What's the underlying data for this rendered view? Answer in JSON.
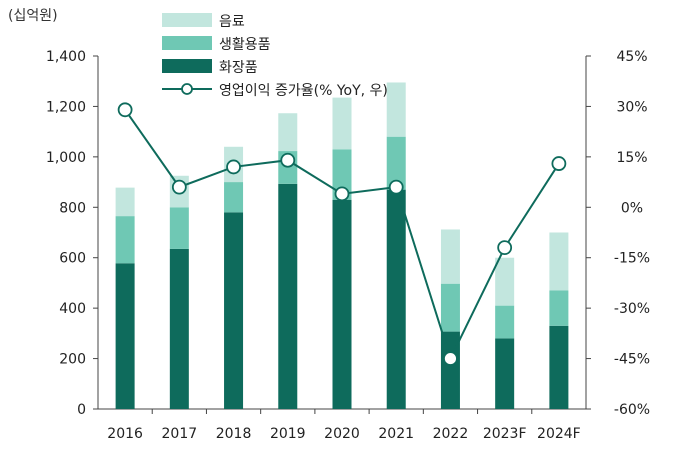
{
  "chart_data": {
    "type": "bar",
    "unit_label": "(십억원)",
    "categories": [
      "2016",
      "2017",
      "2018",
      "2019",
      "2020",
      "2021",
      "2022",
      "2023F",
      "2024F"
    ],
    "stacked": true,
    "series": [
      {
        "name": "화장품",
        "type": "bar",
        "color": "#0e6b5c",
        "values": [
          578,
          635,
          780,
          893,
          830,
          870,
          307,
          280,
          330
        ]
      },
      {
        "name": "생활용품",
        "type": "bar",
        "color": "#6fc8b4",
        "values": [
          187,
          165,
          120,
          130,
          200,
          210,
          190,
          130,
          140
        ]
      },
      {
        "name": "음료",
        "type": "bar",
        "color": "#c2e6de",
        "values": [
          113,
          125,
          140,
          150,
          205,
          215,
          215,
          190,
          230
        ]
      },
      {
        "name": "영업이익 증가율(% YoY, 우)",
        "type": "line",
        "axis": "right",
        "color": "#0e6b5c",
        "values": [
          29,
          6,
          12,
          14,
          4,
          6,
          -45,
          -12,
          13
        ]
      }
    ],
    "ylim_left": [
      0,
      1400
    ],
    "yticks_left": [
      "0",
      "200",
      "400",
      "600",
      "800",
      "1,000",
      "1,200",
      "1,400"
    ],
    "ylim_right": [
      -60,
      45
    ],
    "yticks_right": [
      "-60%",
      "-45%",
      "-30%",
      "-15%",
      "0%",
      "15%",
      "30%",
      "45%"
    ],
    "grid": false,
    "legend_position": "top-center"
  }
}
